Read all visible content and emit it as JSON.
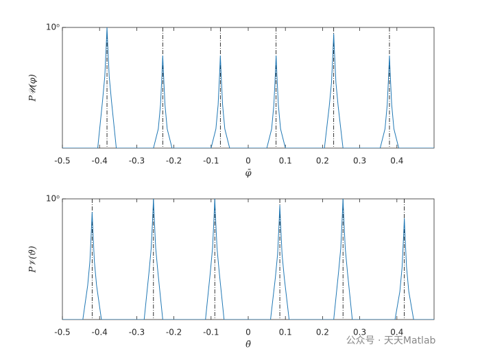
{
  "chart_data": [
    {
      "type": "line",
      "ylabel": "P𝒰(φ)",
      "xlabel": "φ̄",
      "log_y": true,
      "xlim": [
        -0.5,
        0.5
      ],
      "xticks": [
        -0.5,
        -0.4,
        -0.3,
        -0.2,
        -0.1,
        0,
        0.1,
        0.2,
        0.3,
        0.4
      ],
      "ylim": [
        0.001,
        1
      ],
      "yticks": [
        {
          "value": 1,
          "label": "10⁰"
        }
      ],
      "color": "#1f77b4",
      "vline_color": "#000000",
      "vlines": [
        -0.38,
        -0.23,
        -0.075,
        0.075,
        0.23,
        0.38
      ],
      "x": [
        -0.5,
        -0.405,
        -0.392,
        -0.386,
        -0.382,
        -0.38,
        -0.378,
        -0.374,
        -0.368,
        -0.355,
        -0.255,
        -0.242,
        -0.236,
        -0.232,
        -0.23,
        -0.228,
        -0.224,
        -0.218,
        -0.205,
        -0.1,
        -0.087,
        -0.081,
        -0.077,
        -0.075,
        -0.073,
        -0.069,
        -0.063,
        -0.05,
        0.05,
        0.063,
        0.069,
        0.073,
        0.075,
        0.077,
        0.081,
        0.087,
        0.1,
        0.205,
        0.218,
        0.224,
        0.228,
        0.23,
        0.232,
        0.236,
        0.242,
        0.255,
        0.355,
        0.368,
        0.374,
        0.378,
        0.38,
        0.382,
        0.386,
        0.392,
        0.405,
        0.5
      ],
      "values": [
        0.001,
        0.001,
        0.015,
        0.06,
        0.36,
        1,
        0.36,
        0.06,
        0.015,
        0.001,
        0.001,
        0.003,
        0.012,
        0.072,
        0.2,
        0.072,
        0.012,
        0.003,
        0.001,
        0.001,
        0.003,
        0.012,
        0.072,
        0.2,
        0.072,
        0.012,
        0.003,
        0.001,
        0.001,
        0.003,
        0.012,
        0.072,
        0.2,
        0.072,
        0.012,
        0.003,
        0.001,
        0.001,
        0.011,
        0.042,
        0.25,
        0.7,
        0.25,
        0.042,
        0.011,
        0.001,
        0.001,
        0.003,
        0.012,
        0.072,
        0.2,
        0.072,
        0.012,
        0.003,
        0.001,
        0.001
      ]
    },
    {
      "type": "line",
      "ylabel": "P𝒱(ϑ)",
      "xlabel": "θ̄",
      "log_y": true,
      "xlim": [
        -0.5,
        0.5
      ],
      "xticks": [
        -0.5,
        -0.4,
        -0.3,
        -0.2,
        -0.1,
        0,
        0.1,
        0.2,
        0.3,
        0.4
      ],
      "ylim": [
        0.001,
        1
      ],
      "yticks": [
        {
          "value": 1,
          "label": "10⁰"
        }
      ],
      "color": "#1f77b4",
      "vline_color": "#000000",
      "vlines": [
        -0.42,
        -0.255,
        -0.09,
        0.085,
        0.255,
        0.42
      ],
      "x": [
        -0.5,
        -0.445,
        -0.432,
        -0.426,
        -0.422,
        -0.42,
        -0.418,
        -0.414,
        -0.408,
        -0.395,
        -0.28,
        -0.267,
        -0.261,
        -0.257,
        -0.255,
        -0.253,
        -0.249,
        -0.243,
        -0.23,
        -0.115,
        -0.102,
        -0.096,
        -0.092,
        -0.09,
        -0.088,
        -0.084,
        -0.078,
        -0.065,
        0.06,
        0.073,
        0.079,
        0.083,
        0.085,
        0.087,
        0.091,
        0.097,
        0.11,
        0.23,
        0.243,
        0.249,
        0.253,
        0.255,
        0.257,
        0.261,
        0.267,
        0.28,
        0.395,
        0.408,
        0.414,
        0.418,
        0.42,
        0.422,
        0.426,
        0.432,
        0.445,
        0.5
      ],
      "values": [
        0.001,
        0.001,
        0.007,
        0.028,
        0.17,
        0.47,
        0.17,
        0.028,
        0.007,
        0.001,
        0.001,
        0.015,
        0.06,
        0.36,
        1,
        0.36,
        0.06,
        0.015,
        0.001,
        0.001,
        0.015,
        0.06,
        0.36,
        1,
        0.36,
        0.06,
        0.015,
        0.001,
        0.001,
        0.011,
        0.042,
        0.25,
        0.7,
        0.25,
        0.042,
        0.011,
        0.001,
        0.001,
        0.015,
        0.06,
        0.36,
        1,
        0.36,
        0.06,
        0.015,
        0.001,
        0.001,
        0.005,
        0.02,
        0.12,
        0.33,
        0.12,
        0.02,
        0.005,
        0.001,
        0.001
      ]
    }
  ],
  "watermark": "公众号 · 天天Matlab"
}
